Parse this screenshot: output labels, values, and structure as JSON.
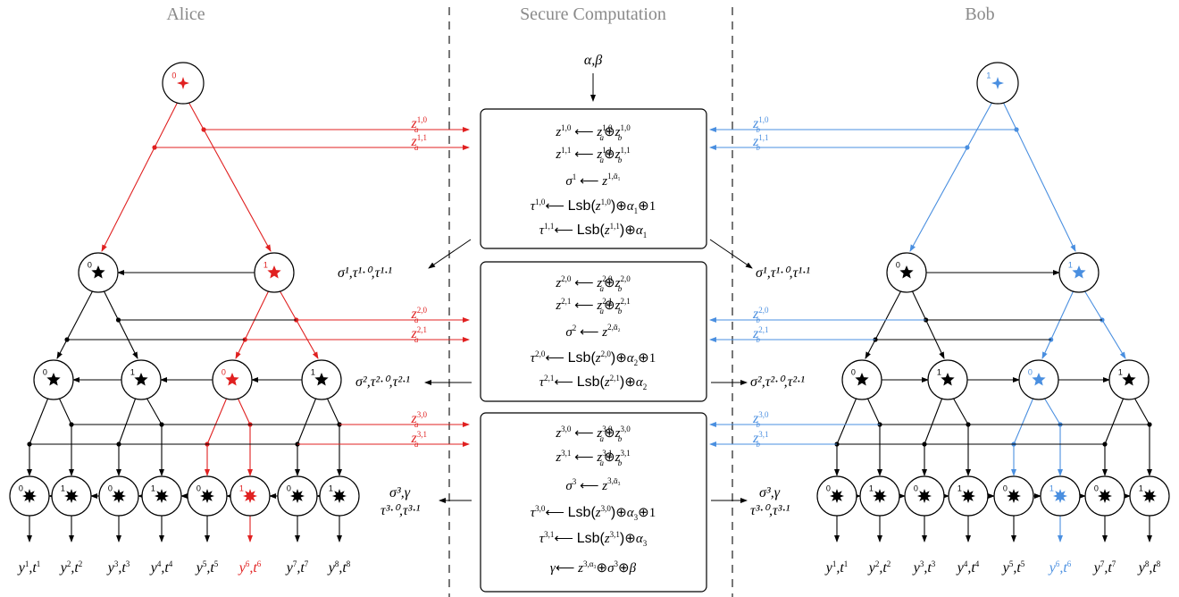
{
  "headers": {
    "alice": "Alice",
    "secure": "Secure Computation",
    "bob": "Bob"
  },
  "inputs": "α,β",
  "colors": {
    "alice": "#e02020",
    "bob": "#4a8fe0",
    "black": "#000000",
    "divider": "#777777"
  },
  "level1": {
    "alice_keys": [
      "z_a^{1,0}",
      "z_a^{1,1}"
    ],
    "bob_keys": [
      "z_b^{1,0}",
      "z_b^{1,1}"
    ],
    "equations": [
      "z^{1,0} ⟵ z_a^{1,0}⊕z_b^{1,0}",
      "z^{1,1} ⟵ z_a^{1,1}⊕z_b^{1,1}",
      "σ^1 ⟵ z^{1,ᾱ1}",
      "τ^{1,0} ⟵ Lsb(z^{1,0})⊕α1⊕1",
      "τ^{1,1} ⟵ Lsb(z^{1,1})⊕α1"
    ],
    "output": "σ¹,τ¹·⁰,τ¹·¹"
  },
  "level2": {
    "alice_keys": [
      "z_a^{2,0}",
      "z_a^{2,1}"
    ],
    "bob_keys": [
      "z_b^{2,0}",
      "z_b^{2,1}"
    ],
    "equations": [
      "z^{2,0} ⟵ z_a^{2,0}⊕z_b^{2,0}",
      "z^{2,1} ⟵ z_a^{2,1}⊕z_b^{2,1}",
      "σ^2 ⟵ z^{2,ᾱ2}",
      "τ^{2,0} ⟵ Lsb(z^{2,0})⊕α2⊕1",
      "τ^{2,1} ⟵ Lsb(z^{2,1})⊕α2"
    ],
    "output": "σ²,τ²·⁰,τ²·¹"
  },
  "level3": {
    "alice_keys": [
      "z_a^{3,0}",
      "z_a^{3,1}"
    ],
    "bob_keys": [
      "z_b^{3,0}",
      "z_b^{3,1}"
    ],
    "equations": [
      "z^{3,0} ⟵ z_a^{3,0}⊕z_b^{3,0}",
      "z^{3,1} ⟵ z_a^{3,1}⊕z_b^{3,1}",
      "σ^3 ⟵ z^{3,α3}",
      "τ^{3,0} ⟵ Lsb(z^{3,0})⊕α3⊕1",
      "τ^{3,1} ⟵ Lsb(z^{3,1})⊕α3",
      "γ ⟵ z^{3,α3}⊕σ^3⊕β"
    ],
    "output_line1": "σ³,γ",
    "output_line2": "τ³·⁰,τ³·¹"
  },
  "leaf_outputs": [
    "y1,t1",
    "y2,t2",
    "y3,t3",
    "y4,t4",
    "y5,t5",
    "y6,t6",
    "y7,t7",
    "y8,t8"
  ],
  "alice_highlight_leaf": 6,
  "bob_highlight_leaf": 6
}
